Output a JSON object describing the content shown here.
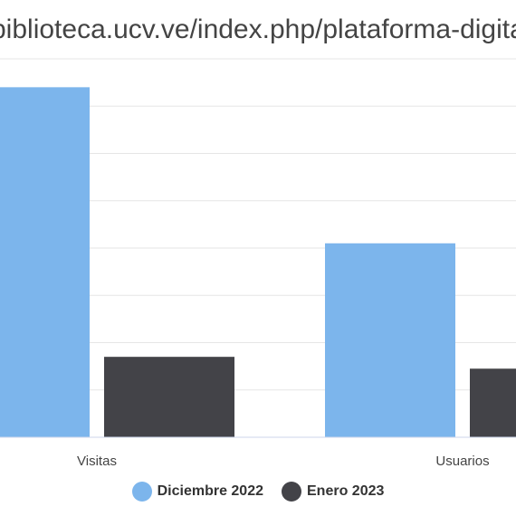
{
  "chart_data": {
    "type": "bar",
    "title": "biblioteca.ucv.ve/index.php/plataforma-digital",
    "categories": [
      "Visitas",
      "Usuarios"
    ],
    "series": [
      {
        "name": "Diciembre 2022",
        "color": "#7cb5ec",
        "values": [
          74,
          41
        ]
      },
      {
        "name": "Enero 2023",
        "color": "#434348",
        "values": [
          17,
          14.5
        ]
      }
    ],
    "ylim": [
      0,
      80
    ],
    "grid": true,
    "legend_placement": "bottom-center"
  }
}
